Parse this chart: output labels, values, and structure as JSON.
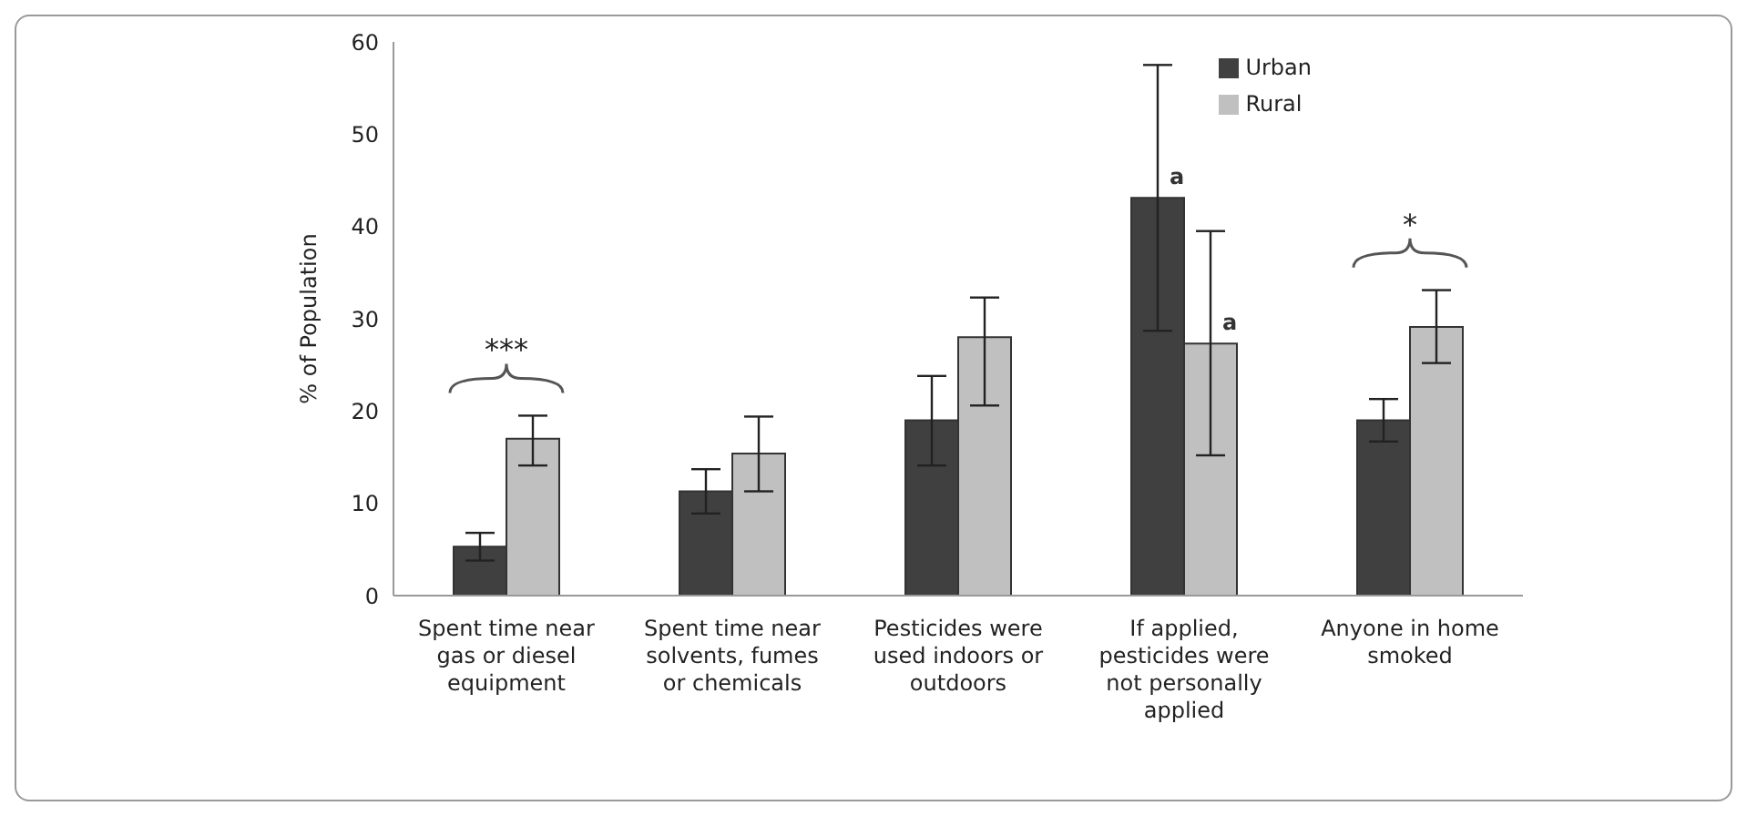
{
  "chart_data": {
    "type": "bar",
    "ylabel": "% of Population",
    "categories": [
      "Spent time near gas or diesel equipment",
      "Spent time near solvents, fumes or chemicals",
      "Pesticides were used indoors or outdoors",
      "If applied, pesticides were not personally applied",
      "Anyone in home smoked"
    ],
    "series": [
      {
        "name": "Urban",
        "color": "#404040",
        "values": [
          5.3,
          11.3,
          19.0,
          43.1,
          19.0
        ],
        "errors": [
          [
            3.8,
            6.8
          ],
          [
            8.9,
            13.7
          ],
          [
            14.1,
            23.8
          ],
          [
            28.7,
            57.5
          ],
          [
            16.7,
            21.3
          ]
        ]
      },
      {
        "name": "Rural",
        "color": "#c0c0c0",
        "values": [
          17.0,
          15.4,
          28.0,
          27.3,
          29.1
        ],
        "errors": [
          [
            14.1,
            19.5
          ],
          [
            11.3,
            19.4
          ],
          [
            20.6,
            32.3
          ],
          [
            15.2,
            39.5
          ],
          [
            25.2,
            33.1
          ]
        ]
      }
    ],
    "ylim": [
      0,
      60
    ],
    "yticks": [
      0,
      10,
      20,
      30,
      40,
      50,
      60
    ],
    "grid": false,
    "legend": "top right",
    "annotations": [
      "***",
      "*",
      {
        "text": "a",
        "x": "If applied, pesticides were not personally applied",
        "y": 44
      },
      {
        "text": "a",
        "x": "If applied, pesticides were not personally applied",
        "y": 28.2
      }
    ]
  }
}
